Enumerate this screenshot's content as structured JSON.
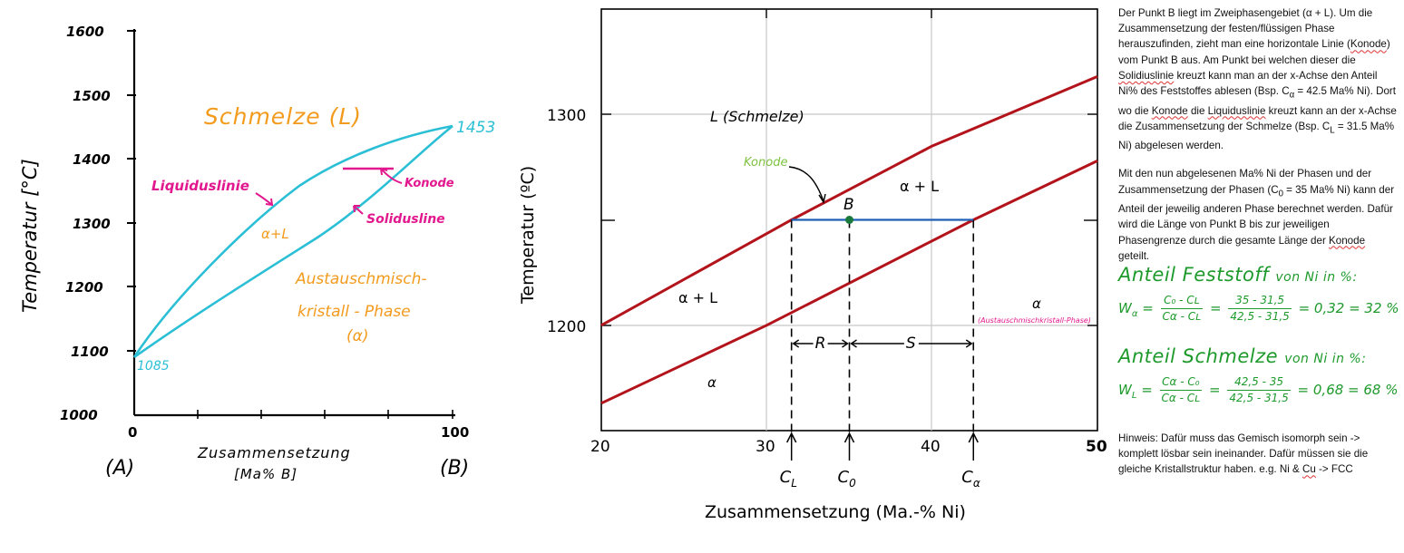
{
  "left_chart": {
    "ylabel": "Temperatur [°C]",
    "xlabel_line1": "Zusammensetzung",
    "xlabel_line2": "[Ma%  B]",
    "y_ticks": [
      "1600",
      "1500",
      "1400",
      "1300",
      "1200",
      "1100",
      "1000"
    ],
    "x_ticks": [
      "0",
      "100"
    ],
    "end_labels": [
      "(A)",
      "(B)"
    ],
    "melt_label": "Schmelze (L)",
    "two_phase_label": "α+L",
    "solid_label_line1": "Austauschmisch-",
    "solid_label_line2": "kristall - Phase",
    "solid_label_line3": "(α)",
    "liquidus_label": "Liquiduslinie",
    "solidus_label": "Solidusline",
    "konode_label": "Konode",
    "temp_A": "1085",
    "temp_B": "1453"
  },
  "right_chart": {
    "ylabel": "Temperatur (ºC)",
    "xlabel": "Zusammensetzung (Ma.-% Ni)",
    "y_ticks": [
      "1300",
      "1200"
    ],
    "x_ticks": [
      "20",
      "30",
      "40",
      "50"
    ],
    "region_L": "L (Schmelze)",
    "region_aL_top": "α + L",
    "region_aL_left": "α + L",
    "region_a_bottom": "α",
    "region_a_right": "α",
    "region_a_right_note": "(Austauschmischkristall-Phase)",
    "konode_label": "Konode",
    "point_label": "B",
    "seg_R": "R",
    "seg_S": "S",
    "c_labels": [
      "C_L",
      "C_0",
      "C_α"
    ]
  },
  "chart_data": [
    {
      "type": "line",
      "ylabel": "Temperatur [°C]",
      "xlabel": "Zusammensetzung [Ma% B]",
      "xlim": [
        0,
        100
      ],
      "ylim": [
        1000,
        1600
      ],
      "series": [
        {
          "name": "Liquiduslinie",
          "x": [
            0,
            10,
            30,
            50,
            70,
            90,
            100
          ],
          "y": [
            1085,
            1165,
            1280,
            1360,
            1410,
            1440,
            1453
          ]
        },
        {
          "name": "Solidusline",
          "x": [
            0,
            20,
            40,
            60,
            80,
            100
          ],
          "y": [
            1085,
            1165,
            1240,
            1310,
            1385,
            1453
          ]
        }
      ]
    },
    {
      "type": "line",
      "ylabel": "Temperatur (ºC)",
      "xlabel": "Zusammensetzung (Ma.-% Ni)",
      "xlim": [
        20,
        50
      ],
      "ylim": [
        1150,
        1350
      ],
      "series": [
        {
          "name": "Liquiduslinie",
          "x": [
            20,
            31.5,
            40,
            50
          ],
          "y": [
            1200,
            1250,
            1285,
            1318
          ]
        },
        {
          "name": "Solidusline",
          "x": [
            20,
            30,
            42.5,
            50
          ],
          "y": [
            1163,
            1200,
            1250,
            1278
          ]
        }
      ],
      "annotations": {
        "konode_T": 1250,
        "C_L": 31.5,
        "C_0": 35,
        "C_alpha": 42.5
      }
    }
  ],
  "text": {
    "para1_a": "Der Punkt B liegt im Zweiphasengebiet (α + L). Um die Zusammensetzung der festen/flüssigen Phase herauszufinden, zieht man eine horizontale Linie (",
    "para1_konode": "Konode",
    "para1_b": ") vom Punkt B aus. Am Punkt bei welchen dieser die ",
    "para1_solidus": "Solidiuslinie",
    "para1_c": " kreuzt kann man an der x-Achse den Anteil Ni% des Feststoffes ablesen (Bsp. C",
    "para1_sub_a": "α",
    "para1_d": " = 42.5 Ma% Ni). Dort wo die ",
    "para1_konode2": "Konode",
    "para1_e": " die ",
    "para1_liquidus": "Liquiduslinie",
    "para1_f": " kreuzt kann an der x-Achse die Zusammensetzung der Schmelze (Bsp. C",
    "para1_sub_L": "L",
    "para1_g": " = 31.5 Ma% Ni) abgelesen werden.",
    "para2_a": "Mit den nun abgelesenen Ma% Ni der Phasen und der Zusammensetzung der Phasen (C",
    "para2_sub_0": "0",
    "para2_b": " = 35 Ma% Ni) kann der Anteil der jeweilig anderen Phase berechnet werden. Dafür wird die Länge von Punkt B bis zur jeweiligen Phasengrenze durch die gesamte Länge der ",
    "para2_konode": "Konode",
    "para2_c": " geteilt.",
    "f1_title": "Anteil Feststoff",
    "f1_title_small": "von Ni in %:",
    "f1_lhs": "W",
    "f1_lhs_sub": "α",
    "f1_num1": "C₀ - Cʟ",
    "f1_den1": "Cα - Cʟ",
    "f1_num2": "35 - 31,5",
    "f1_den2": "42,5 - 31,5",
    "f1_result": "= 0,32 = 32 %",
    "f2_title": "Anteil Schmelze",
    "f2_title_small": "von Ni in %:",
    "f2_lhs": "W",
    "f2_lhs_sub": "L",
    "f2_num1": "Cα - C₀",
    "f2_den1": "Cα - Cʟ",
    "f2_num2": "42,5 - 35",
    "f2_den2": "42,5 - 31,5",
    "f2_result": "= 0,68 = 68 %",
    "hint_a": "Hinweis: Dafür muss das Gemisch isomorph sein -> komplett lösbar sein ineinander. Dafür müssen sie die gleiche Kristallstruktur haben. e.g. Ni & ",
    "hint_cu": "Cu",
    "hint_b": " -> FCC"
  },
  "colors": {
    "cyan": "#2bbfd6",
    "magenta": "#e2188f",
    "orange": "#f29b1d",
    "red": "#b3131b",
    "blue": "#1d5fb3",
    "green": "#1e9a2c",
    "lightgreen": "#7cc23f"
  }
}
